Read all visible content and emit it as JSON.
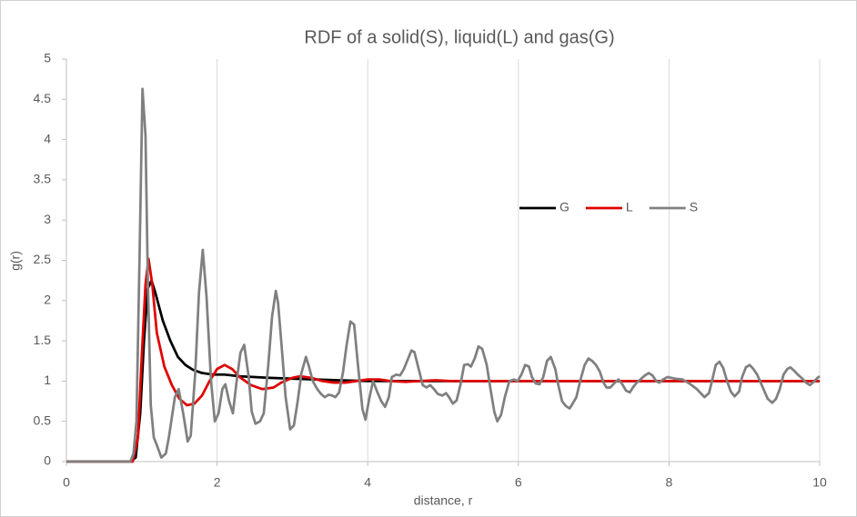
{
  "chart_data": {
    "type": "line",
    "title": "RDF of a solid(S), liquid(L) and gas(G)",
    "x_label": "distance, r",
    "y_label": "g(r)",
    "xlim": [
      0,
      10
    ],
    "xticks": [
      0,
      2,
      4,
      6,
      8,
      10
    ],
    "ylim": [
      0,
      5
    ],
    "yticks": [
      0,
      0.5,
      1,
      1.5,
      2,
      2.5,
      3,
      3.5,
      4,
      4.5,
      5
    ],
    "grid": "x",
    "legend_position": "inside-center-right",
    "series": [
      {
        "name": "G",
        "color": "#000000",
        "x": [
          0,
          0.85,
          0.92,
          0.98,
          1.03,
          1.08,
          1.13,
          1.18,
          1.28,
          1.38,
          1.48,
          1.58,
          1.68,
          1.8,
          1.95,
          2.1,
          2.3,
          2.5,
          2.7,
          3.0,
          3.3,
          3.6,
          4.0,
          10
        ],
        "values": [
          0,
          0,
          0.05,
          0.6,
          1.5,
          2.15,
          2.25,
          2.1,
          1.75,
          1.5,
          1.3,
          1.2,
          1.14,
          1.1,
          1.08,
          1.08,
          1.06,
          1.05,
          1.04,
          1.03,
          1.02,
          1.01,
          1.0,
          1.0
        ]
      },
      {
        "name": "L",
        "color": "#e00000",
        "x": [
          0,
          0.88,
          0.95,
          1.0,
          1.05,
          1.09,
          1.14,
          1.2,
          1.3,
          1.4,
          1.5,
          1.6,
          1.7,
          1.8,
          1.9,
          2.0,
          2.1,
          2.2,
          2.3,
          2.45,
          2.6,
          2.75,
          2.85,
          3.0,
          3.1,
          3.25,
          3.4,
          3.55,
          3.7,
          3.85,
          4.0,
          4.15,
          4.3,
          4.5,
          4.7,
          4.9,
          5.1,
          10
        ],
        "values": [
          0,
          0,
          0.3,
          1.3,
          2.2,
          2.52,
          2.2,
          1.6,
          1.18,
          0.95,
          0.78,
          0.7,
          0.72,
          0.82,
          1.0,
          1.15,
          1.2,
          1.15,
          1.05,
          0.95,
          0.9,
          0.92,
          0.98,
          1.04,
          1.06,
          1.04,
          1.0,
          0.98,
          0.98,
          1.0,
          1.02,
          1.02,
          1.0,
          0.99,
          1.0,
          1.01,
          1.0,
          1.0
        ]
      },
      {
        "name": "S",
        "color": "#808080",
        "x": [
          0,
          0.85,
          0.89,
          0.93,
          0.97,
          1.01,
          1.05,
          1.08,
          1.12,
          1.16,
          1.21,
          1.26,
          1.32,
          1.36,
          1.44,
          1.49,
          1.55,
          1.61,
          1.65,
          1.71,
          1.76,
          1.81,
          1.86,
          1.92,
          1.97,
          2.02,
          2.07,
          2.11,
          2.16,
          2.21,
          2.26,
          2.31,
          2.36,
          2.42,
          2.46,
          2.51,
          2.57,
          2.62,
          2.68,
          2.73,
          2.78,
          2.81,
          2.86,
          2.91,
          2.97,
          3.02,
          3.07,
          3.12,
          3.18,
          3.22,
          3.27,
          3.33,
          3.38,
          3.43,
          3.48,
          3.53,
          3.57,
          3.62,
          3.67,
          3.72,
          3.77,
          3.82,
          3.87,
          3.93,
          3.97,
          4.02,
          4.07,
          4.12,
          4.18,
          4.23,
          4.28,
          4.32,
          4.38,
          4.43,
          4.48,
          4.58,
          4.62,
          4.69,
          4.73,
          4.78,
          4.83,
          4.88,
          4.93,
          4.99,
          5.04,
          5.08,
          5.13,
          5.18,
          5.23,
          5.28,
          5.33,
          5.37,
          5.42,
          5.47,
          5.52,
          5.58,
          5.63,
          5.68,
          5.72,
          5.77,
          5.82,
          5.88,
          5.94,
          5.99,
          6.04,
          6.09,
          6.14,
          6.18,
          6.23,
          6.28,
          6.33,
          6.38,
          6.43,
          6.49,
          6.53,
          6.58,
          6.63,
          6.68,
          6.72,
          6.77,
          6.82,
          6.88,
          6.93,
          6.98,
          7.03,
          7.08,
          7.13,
          7.17,
          7.22,
          7.28,
          7.33,
          7.38,
          7.43,
          7.48,
          7.52,
          7.57,
          7.62,
          7.68,
          7.73,
          7.78,
          7.83,
          7.87,
          7.92,
          7.98,
          8.03,
          8.08,
          8.18,
          8.27,
          8.37,
          8.47,
          8.53,
          8.57,
          8.62,
          8.67,
          8.72,
          8.77,
          8.82,
          8.87,
          8.93,
          8.97,
          9.02,
          9.07,
          9.12,
          9.17,
          9.24,
          9.31,
          9.37,
          9.42,
          9.47,
          9.52,
          9.57,
          9.61,
          9.66,
          9.71,
          9.77,
          9.82,
          9.87,
          9.92,
          9.97,
          10
        ],
        "values": [
          0,
          0,
          0.1,
          0.5,
          2.5,
          4.63,
          4.05,
          2.3,
          0.7,
          0.3,
          0.18,
          0.05,
          0.1,
          0.3,
          0.8,
          0.9,
          0.6,
          0.25,
          0.32,
          1.1,
          2.1,
          2.63,
          2.05,
          1.0,
          0.5,
          0.6,
          0.9,
          0.96,
          0.75,
          0.6,
          1.0,
          1.35,
          1.45,
          1.05,
          0.62,
          0.47,
          0.5,
          0.6,
          1.2,
          1.8,
          2.12,
          1.97,
          1.4,
          0.8,
          0.4,
          0.45,
          0.75,
          1.1,
          1.3,
          1.18,
          1.0,
          0.9,
          0.84,
          0.8,
          0.83,
          0.82,
          0.8,
          0.86,
          1.1,
          1.45,
          1.74,
          1.7,
          1.2,
          0.65,
          0.52,
          0.78,
          1.0,
          0.88,
          0.75,
          0.68,
          0.8,
          1.05,
          1.08,
          1.07,
          1.15,
          1.38,
          1.36,
          1.1,
          0.95,
          0.92,
          0.95,
          0.9,
          0.84,
          0.82,
          0.85,
          0.8,
          0.72,
          0.76,
          0.95,
          1.2,
          1.21,
          1.18,
          1.28,
          1.43,
          1.4,
          1.2,
          0.9,
          0.62,
          0.5,
          0.58,
          0.8,
          1.0,
          1.02,
          1.0,
          1.08,
          1.2,
          1.18,
          1.05,
          0.97,
          0.96,
          1.05,
          1.25,
          1.3,
          1.15,
          0.95,
          0.75,
          0.69,
          0.66,
          0.72,
          0.8,
          1.0,
          1.2,
          1.28,
          1.25,
          1.2,
          1.12,
          0.98,
          0.92,
          0.92,
          0.98,
          1.02,
          0.96,
          0.88,
          0.86,
          0.92,
          0.98,
          1.02,
          1.07,
          1.1,
          1.07,
          1.0,
          0.98,
          1.02,
          1.05,
          1.04,
          1.03,
          1.02,
          0.97,
          0.9,
          0.8,
          0.85,
          1.0,
          1.2,
          1.24,
          1.16,
          1.0,
          0.87,
          0.81,
          0.87,
          1.05,
          1.17,
          1.2,
          1.15,
          1.08,
          0.93,
          0.78,
          0.73,
          0.78,
          0.9,
          1.08,
          1.15,
          1.17,
          1.13,
          1.08,
          1.03,
          0.98,
          0.95,
          0.99,
          1.04,
          1.06
        ]
      }
    ]
  }
}
